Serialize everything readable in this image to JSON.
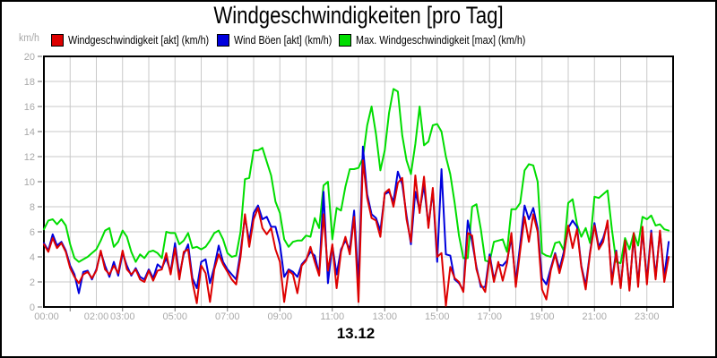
{
  "title": "Windgeschwindigkeiten [pro Tag]",
  "y_axis": {
    "unit": "km/h",
    "min": 0,
    "max": 20,
    "tick_step": 2,
    "tick_labels": [
      "0",
      "2",
      "4",
      "6",
      "8",
      "10",
      "12",
      "14",
      "16",
      "18",
      "20"
    ]
  },
  "x_axis": {
    "date_label": "13.12",
    "ticks": [
      {
        "label": "00:00",
        "hour": 0
      },
      {
        "label": "02:00",
        "hour": 2
      },
      {
        "label": "03:00",
        "hour": 3
      },
      {
        "label": "05:00",
        "hour": 5
      },
      {
        "label": "07:00",
        "hour": 7
      },
      {
        "label": "09:00",
        "hour": 9
      },
      {
        "label": "11:00",
        "hour": 11
      },
      {
        "label": "13:00",
        "hour": 13
      },
      {
        "label": "15:00",
        "hour": 15
      },
      {
        "label": "17:00",
        "hour": 17
      },
      {
        "label": "19:00",
        "hour": 19
      },
      {
        "label": "21:00",
        "hour": 21
      },
      {
        "label": "23:00",
        "hour": 23
      }
    ]
  },
  "legend": {
    "items": [
      {
        "label": "Windgeschwindigkeit [akt] (km/h)",
        "color": "#dd0000"
      },
      {
        "label": "Wind Böen [akt] (km/h)",
        "color": "#0000dd"
      },
      {
        "label": "Max. Windgeschwindigkeit [max] (km/h)",
        "color": "#00dd00"
      }
    ]
  },
  "colors": {
    "grid": "#c9c9c9",
    "axis": "#000000",
    "tick_text": "#a9a9a9",
    "background": "#ffffff"
  },
  "chart_data": {
    "type": "line",
    "title": "Windgeschwindigkeiten [pro Tag]",
    "xlabel": "",
    "ylabel": "km/h",
    "ylim": [
      0,
      20
    ],
    "xlim_hours": [
      0,
      24
    ],
    "grid": true,
    "legend_position": "top",
    "x_start": "00:00",
    "x_interval_minutes": 10,
    "date": "13.12",
    "series": [
      {
        "name": "Windgeschwindigkeit [akt] (km/h)",
        "color": "#dd0000",
        "values": [
          5.0,
          4.4,
          5.5,
          4.7,
          5.1,
          4.4,
          3.1,
          2.4,
          1.9,
          2.6,
          2.8,
          2.3,
          2.9,
          4.5,
          3.0,
          2.6,
          3.3,
          2.7,
          4.5,
          3.0,
          2.6,
          3.0,
          2.2,
          2.0,
          2.9,
          2.1,
          2.9,
          3.0,
          4.3,
          2.6,
          4.7,
          2.2,
          4.4,
          4.6,
          2.0,
          0.3,
          3.3,
          2.7,
          0.4,
          3.0,
          4.2,
          3.4,
          2.8,
          2.2,
          1.8,
          4.0,
          7.4,
          4.8,
          7.0,
          7.9,
          6.3,
          5.8,
          6.3,
          4.6,
          3.6,
          0.4,
          2.9,
          2.6,
          1.1,
          3.3,
          3.7,
          4.8,
          3.6,
          2.5,
          7.4,
          2.9,
          5.0,
          1.5,
          4.4,
          5.6,
          4.2,
          7.2,
          0.4,
          11.7,
          8.7,
          7.1,
          6.9,
          5.6,
          9.1,
          9.4,
          8.0,
          9.9,
          10.3,
          7.0,
          5.2,
          10.5,
          7.5,
          10.4,
          6.3,
          9.5,
          4.0,
          4.3,
          0.1,
          3.2,
          2.3,
          2.0,
          1.2,
          5.9,
          5.7,
          3.0,
          1.8,
          1.2,
          4.0,
          2.0,
          3.6,
          2.1,
          3.5,
          5.9,
          1.6,
          4.5,
          7.2,
          5.2,
          7.4,
          6.0,
          1.4,
          0.6,
          2.9,
          4.2,
          2.7,
          4.1,
          6.5,
          4.7,
          6.2,
          3.2,
          1.4,
          4.3,
          6.5,
          4.6,
          5.2,
          6.9,
          1.8,
          4.4,
          1.5,
          5.3,
          1.3,
          5.9,
          1.6,
          6.4,
          1.8,
          5.9,
          2.2,
          6.1,
          2.0,
          4.0
        ]
      },
      {
        "name": "Wind Böen [akt] (km/h)",
        "color": "#0000dd",
        "values": [
          5.1,
          4.5,
          5.8,
          4.9,
          5.2,
          4.5,
          3.3,
          2.6,
          1.1,
          2.8,
          2.9,
          2.2,
          3.0,
          4.4,
          3.3,
          2.4,
          3.6,
          2.5,
          4.3,
          3.3,
          2.5,
          3.1,
          2.4,
          2.2,
          3.0,
          2.3,
          3.4,
          3.1,
          3.9,
          2.8,
          5.1,
          2.5,
          4.2,
          5.0,
          2.3,
          1.5,
          3.6,
          3.8,
          1.9,
          3.2,
          4.9,
          3.6,
          3.0,
          2.6,
          2.2,
          4.4,
          7.2,
          5.2,
          7.5,
          8.1,
          7.0,
          7.2,
          6.4,
          6.4,
          5.0,
          2.4,
          3.0,
          2.8,
          2.4,
          3.4,
          3.8,
          4.4,
          4.1,
          2.6,
          9.2,
          1.9,
          4.9,
          2.6,
          4.6,
          5.3,
          4.6,
          7.7,
          1.8,
          12.8,
          9.0,
          7.4,
          7.1,
          6.1,
          9.0,
          9.2,
          8.4,
          10.8,
          9.8,
          7.3,
          5.0,
          9.2,
          7.7,
          9.7,
          6.5,
          9.3,
          3.6,
          11.0,
          4.2,
          4.1,
          2.2,
          1.9,
          1.3,
          6.9,
          5.2,
          3.2,
          1.6,
          1.6,
          4.2,
          2.2,
          3.4,
          3.3,
          3.7,
          5.5,
          2.0,
          5.0,
          8.1,
          7.0,
          7.9,
          6.3,
          2.3,
          1.8,
          3.1,
          4.3,
          3.0,
          4.4,
          6.3,
          6.9,
          6.4,
          3.3,
          1.7,
          4.4,
          6.7,
          4.8,
          5.5,
          6.7,
          2.1,
          4.5,
          1.6,
          5.2,
          1.5,
          5.6,
          1.9,
          6.1,
          2.1,
          6.1,
          2.4,
          6.0,
          2.4,
          5.2
        ]
      },
      {
        "name": "Max. Windgeschwindigkeit [max] (km/h)",
        "color": "#00dd00",
        "values": [
          6.2,
          6.9,
          7.0,
          6.6,
          7.0,
          6.5,
          5.0,
          3.9,
          3.6,
          3.8,
          4.0,
          4.3,
          4.6,
          5.3,
          6.1,
          6.3,
          4.8,
          5.2,
          6.1,
          5.6,
          4.4,
          3.6,
          4.2,
          3.9,
          4.4,
          4.5,
          4.3,
          3.9,
          6.0,
          5.9,
          5.9,
          5.0,
          5.3,
          5.9,
          4.7,
          4.8,
          4.6,
          4.8,
          5.3,
          5.9,
          6.1,
          5.4,
          4.3,
          4.0,
          4.1,
          6.0,
          10.2,
          10.3,
          12.5,
          12.5,
          12.7,
          11.6,
          10.5,
          8.4,
          7.5,
          5.4,
          4.8,
          5.2,
          5.3,
          5.3,
          5.7,
          5.6,
          7.1,
          6.3,
          9.7,
          10.0,
          5.4,
          7.9,
          7.7,
          9.6,
          11.0,
          11.0,
          11.1,
          11.9,
          14.5,
          16.0,
          13.8,
          10.9,
          12.5,
          15.5,
          17.4,
          17.2,
          13.7,
          11.7,
          10.6,
          13.0,
          16.0,
          12.9,
          13.2,
          14.5,
          14.6,
          14.0,
          12.0,
          10.6,
          8.3,
          5.7,
          3.9,
          3.9,
          8.0,
          8.2,
          6.2,
          3.7,
          3.6,
          5.2,
          5.3,
          5.4,
          4.4,
          7.8,
          7.8,
          8.3,
          10.9,
          11.4,
          11.3,
          10.0,
          4.3,
          4.1,
          4.0,
          5.1,
          5.2,
          4.5,
          8.3,
          8.6,
          6.6,
          5.6,
          6.3,
          5.1,
          8.8,
          8.7,
          9.0,
          9.3,
          6.2,
          3.6,
          3.5,
          5.5,
          4.6,
          5.9,
          4.9,
          7.2,
          7.0,
          7.3,
          6.5,
          6.6,
          6.2,
          6.1
        ]
      }
    ]
  }
}
